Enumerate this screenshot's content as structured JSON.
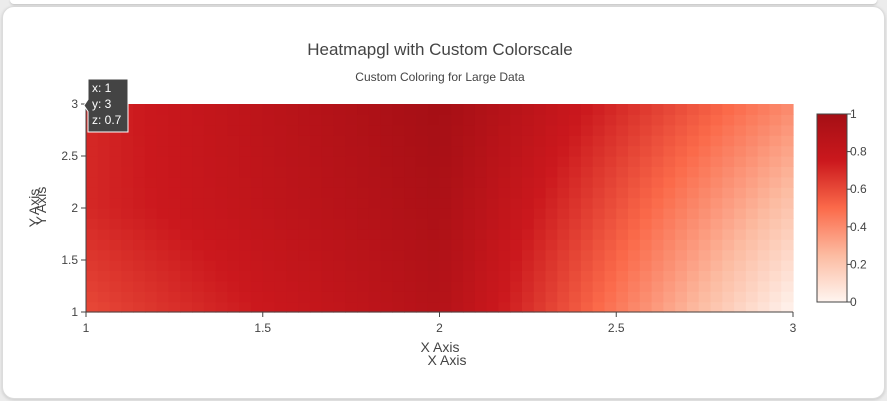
{
  "chart_data": {
    "type": "heatmap",
    "title": "Heatmapgl with Custom Colorscale",
    "subtitle": "Custom Coloring for Large Data",
    "xlabel": "X Axis",
    "ylabel": "Y Axis",
    "x": [
      1,
      2,
      3
    ],
    "y": [
      1,
      2,
      3
    ],
    "z": [
      [
        0.6,
        0.9,
        0.0
      ],
      [
        0.7,
        0.95,
        0.2
      ],
      [
        0.7,
        1.0,
        0.4
      ]
    ],
    "xlim": [
      1,
      3
    ],
    "ylim": [
      1,
      3
    ],
    "x_ticks": [
      "1",
      "1.5",
      "2",
      "2.5",
      "3"
    ],
    "x_tick_values": [
      1,
      1.5,
      2,
      2.5,
      3
    ],
    "y_ticks": [
      "1",
      "1.5",
      "2",
      "2.5",
      "3"
    ],
    "y_tick_values": [
      1,
      1.5,
      2,
      2.5,
      3
    ],
    "colorscale": [
      [
        0,
        "#fff5f0"
      ],
      [
        0.25,
        "#fcbba1"
      ],
      [
        0.5,
        "#fb6a4a"
      ],
      [
        0.75,
        "#cb181d"
      ],
      [
        1,
        "#a50f15"
      ]
    ],
    "colorbar": {
      "range": [
        0,
        1
      ],
      "ticks": [
        "0",
        "0.2",
        "0.4",
        "0.6",
        "0.8",
        "1"
      ],
      "tick_values": [
        0,
        0.2,
        0.4,
        0.6,
        0.8,
        1
      ]
    },
    "tooltip": {
      "lines": [
        "x: 1",
        "y: 3",
        "z: 0.7"
      ]
    },
    "grid": false,
    "legend": "none"
  }
}
